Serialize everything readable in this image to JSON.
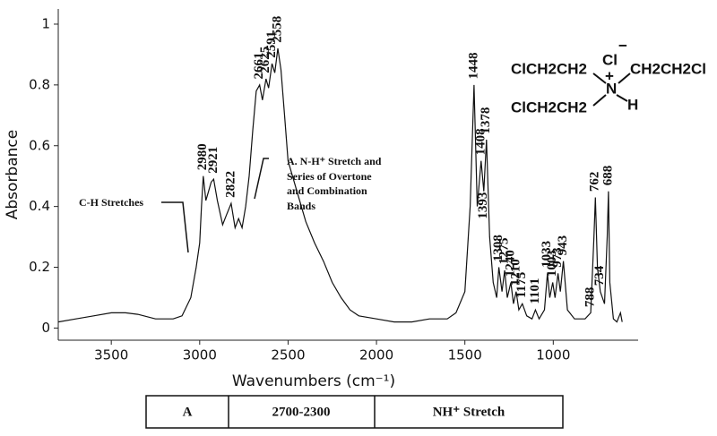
{
  "chart_data": {
    "type": "line",
    "xlabel": "Wavenumbers (cm⁻¹)",
    "ylabel": "Absorbance",
    "xlim": [
      3800,
      520
    ],
    "ylim": [
      -0.04,
      1.05
    ],
    "xreversed": true,
    "xticks": [
      3500,
      3000,
      2500,
      2000,
      1500,
      1000
    ],
    "yticks": [
      0,
      0.2,
      0.4,
      0.6,
      0.8,
      1
    ],
    "series": [
      {
        "color": "#111111",
        "x": [
          3800,
          3700,
          3600,
          3500,
          3420,
          3350,
          3250,
          3150,
          3100,
          3050,
          3020,
          3000,
          2990,
          2980,
          2965,
          2950,
          2935,
          2921,
          2900,
          2870,
          2850,
          2822,
          2800,
          2780,
          2760,
          2740,
          2720,
          2700,
          2680,
          2661,
          2645,
          2625,
          2610,
          2591,
          2575,
          2558,
          2540,
          2520,
          2500,
          2450,
          2400,
          2350,
          2300,
          2250,
          2200,
          2150,
          2100,
          2000,
          1900,
          1800,
          1700,
          1600,
          1550,
          1500,
          1470,
          1448,
          1430,
          1408,
          1393,
          1378,
          1360,
          1340,
          1320,
          1308,
          1290,
          1275,
          1260,
          1240,
          1225,
          1210,
          1195,
          1175,
          1150,
          1120,
          1101,
          1080,
          1050,
          1033,
          1020,
          1003,
          990,
          973,
          960,
          943,
          920,
          880,
          820,
          788,
          770,
          762,
          750,
          734,
          710,
          695,
          688,
          680,
          660,
          640,
          620,
          610
        ],
        "values": [
          0.02,
          0.03,
          0.04,
          0.05,
          0.05,
          0.045,
          0.03,
          0.03,
          0.04,
          0.1,
          0.2,
          0.28,
          0.4,
          0.5,
          0.42,
          0.45,
          0.48,
          0.49,
          0.42,
          0.34,
          0.37,
          0.41,
          0.33,
          0.36,
          0.33,
          0.4,
          0.5,
          0.65,
          0.78,
          0.8,
          0.75,
          0.82,
          0.79,
          0.87,
          0.84,
          0.92,
          0.85,
          0.7,
          0.55,
          0.45,
          0.35,
          0.28,
          0.22,
          0.15,
          0.1,
          0.06,
          0.04,
          0.03,
          0.02,
          0.02,
          0.03,
          0.03,
          0.05,
          0.12,
          0.4,
          0.8,
          0.4,
          0.55,
          0.45,
          0.62,
          0.3,
          0.15,
          0.1,
          0.2,
          0.12,
          0.19,
          0.1,
          0.15,
          0.08,
          0.12,
          0.06,
          0.08,
          0.04,
          0.03,
          0.06,
          0.03,
          0.06,
          0.18,
          0.1,
          0.15,
          0.1,
          0.18,
          0.12,
          0.22,
          0.06,
          0.03,
          0.03,
          0.05,
          0.3,
          0.43,
          0.2,
          0.12,
          0.08,
          0.3,
          0.45,
          0.15,
          0.03,
          0.02,
          0.05,
          0.02
        ]
      }
    ],
    "peaks": [
      {
        "x": 2980,
        "y": 0.51,
        "label": "2980"
      },
      {
        "x": 2921,
        "y": 0.5,
        "label": "2921"
      },
      {
        "x": 2822,
        "y": 0.42,
        "label": "2822"
      },
      {
        "x": 2661,
        "y": 0.81,
        "label": "2661"
      },
      {
        "x": 2625,
        "y": 0.83,
        "label": "2625"
      },
      {
        "x": 2591,
        "y": 0.88,
        "label": "2591"
      },
      {
        "x": 2558,
        "y": 0.93,
        "label": "2558"
      },
      {
        "x": 1448,
        "y": 0.81,
        "label": "1448"
      },
      {
        "x": 1408,
        "y": 0.56,
        "label": "1408"
      },
      {
        "x": 1393,
        "y": 0.35,
        "label": "1393"
      },
      {
        "x": 1378,
        "y": 0.63,
        "label": "1378"
      },
      {
        "x": 1308,
        "y": 0.21,
        "label": "1308"
      },
      {
        "x": 1275,
        "y": 0.2,
        "label": "1275"
      },
      {
        "x": 1240,
        "y": 0.16,
        "label": "1240"
      },
      {
        "x": 1210,
        "y": 0.13,
        "label": "1210"
      },
      {
        "x": 1175,
        "y": 0.09,
        "label": "1175"
      },
      {
        "x": 1101,
        "y": 0.07,
        "label": "1101"
      },
      {
        "x": 1033,
        "y": 0.19,
        "label": "1033"
      },
      {
        "x": 1003,
        "y": 0.16,
        "label": "1003"
      },
      {
        "x": 973,
        "y": 0.19,
        "label": "973"
      },
      {
        "x": 943,
        "y": 0.23,
        "label": "943"
      },
      {
        "x": 788,
        "y": 0.06,
        "label": "788"
      },
      {
        "x": 762,
        "y": 0.44,
        "label": "762"
      },
      {
        "x": 734,
        "y": 0.13,
        "label": "734"
      },
      {
        "x": 688,
        "y": 0.46,
        "label": "688"
      }
    ],
    "annotations": [
      "C-H Stretches",
      "A.  N-H⁺ Stretch and",
      "Series of Overtone",
      "and Combination",
      "Bands"
    ]
  },
  "structure": {
    "arm1": "ClCH2CH2",
    "cl": "Cl",
    "minus": "−",
    "arm2": "CH2CH2Cl",
    "n": "N",
    "plus": "+",
    "h": "H",
    "arm3": "ClCH2CH2"
  },
  "table": {
    "rows": [
      [
        "A",
        "2700-2300",
        "NH⁺ Stretch"
      ]
    ]
  }
}
